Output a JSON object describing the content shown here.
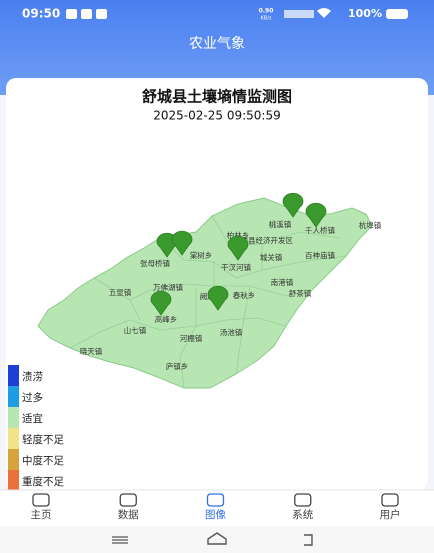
{
  "status_bar": {
    "time": "09:50",
    "speed": "0.90",
    "speed_unit": "KB/s",
    "battery": "100%"
  },
  "header": {
    "title": "农业气象"
  },
  "card": {
    "title": "舒城县土壤墒情监测图",
    "timestamp": "2025-02-25 09:50:59"
  },
  "map": {
    "labels": [
      "桃溪镇",
      "杭埠镇",
      "柏林乡",
      "舒城县经济开发区",
      "千人桥镇",
      "棠树乡",
      "张母桥镇",
      "干汊河镇",
      "城关镇",
      "百神庙镇",
      "五显镇",
      "万佛湖镇",
      "南港镇",
      "阙店乡",
      "春秋乡",
      "舒茶镇",
      "高峰乡",
      "山七镇",
      "河棚镇",
      "汤池镇",
      "晓天镇",
      "庐镇乡"
    ]
  },
  "legend": [
    {
      "label": "渍涝",
      "color": "#1d3fd6"
    },
    {
      "label": "过多",
      "color": "#1e9ee2"
    },
    {
      "label": "适宜",
      "color": "#b7e6b2"
    },
    {
      "label": "轻度不足",
      "color": "#f1e38a"
    },
    {
      "label": "中度不足",
      "color": "#d7a33c"
    },
    {
      "label": "重度不足",
      "color": "#ea6f3a"
    }
  ],
  "nav": {
    "items": [
      "主页",
      "数据",
      "图像",
      "系统",
      "用户"
    ],
    "active": 2
  }
}
